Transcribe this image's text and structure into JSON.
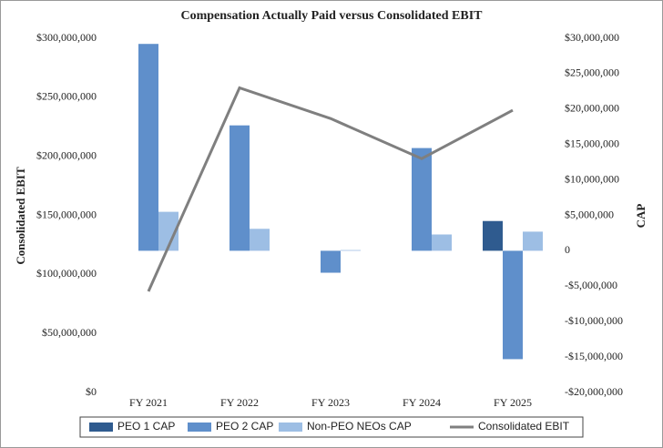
{
  "chart_data": {
    "type": "bar",
    "title": "Compensation Actually Paid versus Consolidated EBIT",
    "categories": [
      "FY 2021",
      "FY 2022",
      "FY 2023",
      "FY 2024",
      "FY 2025"
    ],
    "y_label": "Consolidated EBIT",
    "y2_label": "CAP",
    "ylim": [
      0,
      300000000
    ],
    "yticks": [
      {
        "value": 0,
        "label": "$0"
      },
      {
        "value": 50000000,
        "label": "$50,000,000"
      },
      {
        "value": 100000000,
        "label": "$100,000,000"
      },
      {
        "value": 150000000,
        "label": "$150,000,000"
      },
      {
        "value": 200000000,
        "label": "$200,000,000"
      },
      {
        "value": 250000000,
        "label": "$250,000,000"
      },
      {
        "value": 300000000,
        "label": "$300,000,000"
      }
    ],
    "y2lim": [
      -20000000,
      30000000
    ],
    "y2ticks": [
      {
        "value": -20000000,
        "label": "-$20,000,000"
      },
      {
        "value": -15000000,
        "label": "-$15,000,000"
      },
      {
        "value": -10000000,
        "label": "-$10,000,000"
      },
      {
        "value": -5000000,
        "label": "-$5,000,000"
      },
      0,
      {
        "value": 5000000,
        "label": "$5,000,000"
      },
      {
        "value": 10000000,
        "label": "$10,000,000"
      },
      {
        "value": 15000000,
        "label": "$15,000,000"
      },
      {
        "value": 20000000,
        "label": "$20,000,000"
      },
      {
        "value": 25000000,
        "label": "$25,000,000"
      },
      {
        "value": 30000000,
        "label": "$30,000,000"
      }
    ],
    "series": [
      {
        "name": "PEO 1 CAP",
        "type": "bar",
        "axis": "y2",
        "color": "#2f5b8f",
        "values": [
          null,
          null,
          null,
          null,
          4200000
        ]
      },
      {
        "name": "PEO 2 CAP",
        "type": "bar",
        "axis": "y2",
        "color": "#5f8fcb",
        "values": [
          29200000,
          17700000,
          -3100000,
          14500000,
          -15300000
        ]
      },
      {
        "name": "Non-PEO NEOs CAP",
        "type": "bar",
        "axis": "y2",
        "color": "#9dbee4",
        "values": [
          5500000,
          3100000,
          100000,
          2300000,
          2700000
        ]
      },
      {
        "name": "Consolidated EBIT",
        "type": "line",
        "axis": "y",
        "color": "#7f7f7f",
        "values": [
          85600000,
          258000000,
          232000000,
          198000000,
          239000000
        ]
      }
    ]
  }
}
